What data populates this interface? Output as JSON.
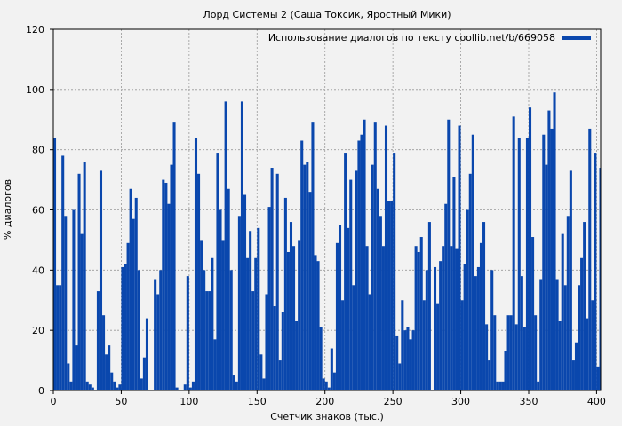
{
  "chart_data": {
    "type": "bar",
    "title": "Лорд Системы 2 (Саша Токсик, Яростный Мики)",
    "xlabel": "Счетчик знаков (тыс.)",
    "ylabel": "% диалогов",
    "xlim": [
      0,
      403
    ],
    "ylim": [
      0,
      120
    ],
    "xticks": [
      "0",
      "50",
      "100",
      "150",
      "200",
      "250",
      "300",
      "350",
      "400"
    ],
    "yticks": [
      "0",
      "20",
      "40",
      "60",
      "80",
      "100",
      "120"
    ],
    "grid": true,
    "legend_position": "top-right",
    "bar_color": "#0a47ad",
    "series": [
      {
        "name": "Использование диалогов по тексту coollib.net/b/669058",
        "x": [
          0,
          2,
          4,
          6,
          8,
          10,
          12,
          14,
          16,
          18,
          20,
          22,
          24,
          26,
          28,
          30,
          32,
          34,
          36,
          38,
          40,
          42,
          44,
          46,
          48,
          50,
          52,
          54,
          56,
          58,
          60,
          62,
          64,
          66,
          68,
          70,
          72,
          74,
          76,
          78,
          80,
          82,
          84,
          86,
          88,
          90,
          92,
          94,
          96,
          98,
          100,
          102,
          104,
          106,
          108,
          110,
          112,
          114,
          116,
          118,
          120,
          122,
          124,
          126,
          128,
          130,
          132,
          134,
          136,
          138,
          140,
          142,
          144,
          146,
          148,
          150,
          152,
          154,
          156,
          158,
          160,
          162,
          164,
          166,
          168,
          170,
          172,
          174,
          176,
          178,
          180,
          182,
          184,
          186,
          188,
          190,
          192,
          194,
          196,
          198,
          200,
          202,
          204,
          206,
          208,
          210,
          212,
          214,
          216,
          218,
          220,
          222,
          224,
          226,
          228,
          230,
          232,
          234,
          236,
          238,
          240,
          242,
          244,
          246,
          248,
          250,
          252,
          254,
          256,
          258,
          260,
          262,
          264,
          266,
          268,
          270,
          272,
          274,
          276,
          278,
          280,
          282,
          284,
          286,
          288,
          290,
          292,
          294,
          296,
          298,
          300,
          302,
          304,
          306,
          308,
          310,
          312,
          314,
          316,
          318,
          320,
          322,
          324,
          326,
          328,
          330,
          332,
          334,
          336,
          338,
          340,
          342,
          344,
          346,
          348,
          350,
          352,
          354,
          356,
          358,
          360,
          362,
          364,
          366,
          368,
          370,
          372,
          374,
          376,
          378,
          380,
          382,
          384,
          386,
          388,
          390,
          392,
          394,
          396,
          398,
          400,
          402
        ],
        "values": [
          84,
          35,
          35,
          78,
          58,
          9,
          3,
          60,
          15,
          72,
          52,
          76,
          3,
          2,
          1,
          0,
          33,
          73,
          25,
          12,
          15,
          6,
          3,
          1,
          2,
          41,
          42,
          49,
          67,
          57,
          64,
          40,
          4,
          11,
          24,
          0,
          0,
          37,
          32,
          40,
          70,
          69,
          62,
          75,
          89,
          1,
          0,
          0,
          2,
          38,
          1,
          3,
          84,
          72,
          50,
          40,
          33,
          33,
          44,
          17,
          79,
          60,
          50,
          96,
          67,
          40,
          5,
          3,
          58,
          96,
          65,
          44,
          53,
          33,
          44,
          54,
          12,
          4,
          32,
          61,
          74,
          28,
          72,
          10,
          26,
          64,
          46,
          56,
          48,
          23,
          50,
          83,
          75,
          76,
          66,
          89,
          45,
          43,
          21,
          4,
          3,
          1,
          14,
          6,
          49,
          55,
          30,
          79,
          54,
          70,
          35,
          73,
          83,
          85,
          90,
          48,
          32,
          75,
          89,
          67,
          58,
          48,
          88,
          63,
          63,
          79,
          18,
          9,
          30,
          20,
          21,
          17,
          20,
          48,
          46,
          51,
          30,
          40,
          56,
          0,
          41,
          29,
          43,
          48,
          62,
          90,
          48,
          71,
          47,
          88,
          30,
          42,
          60,
          72,
          85,
          38,
          41,
          49,
          56,
          22,
          10,
          40,
          25,
          3,
          3,
          3,
          13,
          25,
          25,
          91,
          22,
          84,
          38,
          21,
          84,
          94,
          51,
          25,
          3,
          37,
          85,
          75,
          93,
          87,
          99,
          37,
          23,
          52,
          35,
          58,
          73,
          10,
          16,
          35,
          44,
          56,
          24,
          87,
          30,
          79,
          8,
          74
        ]
      }
    ]
  }
}
